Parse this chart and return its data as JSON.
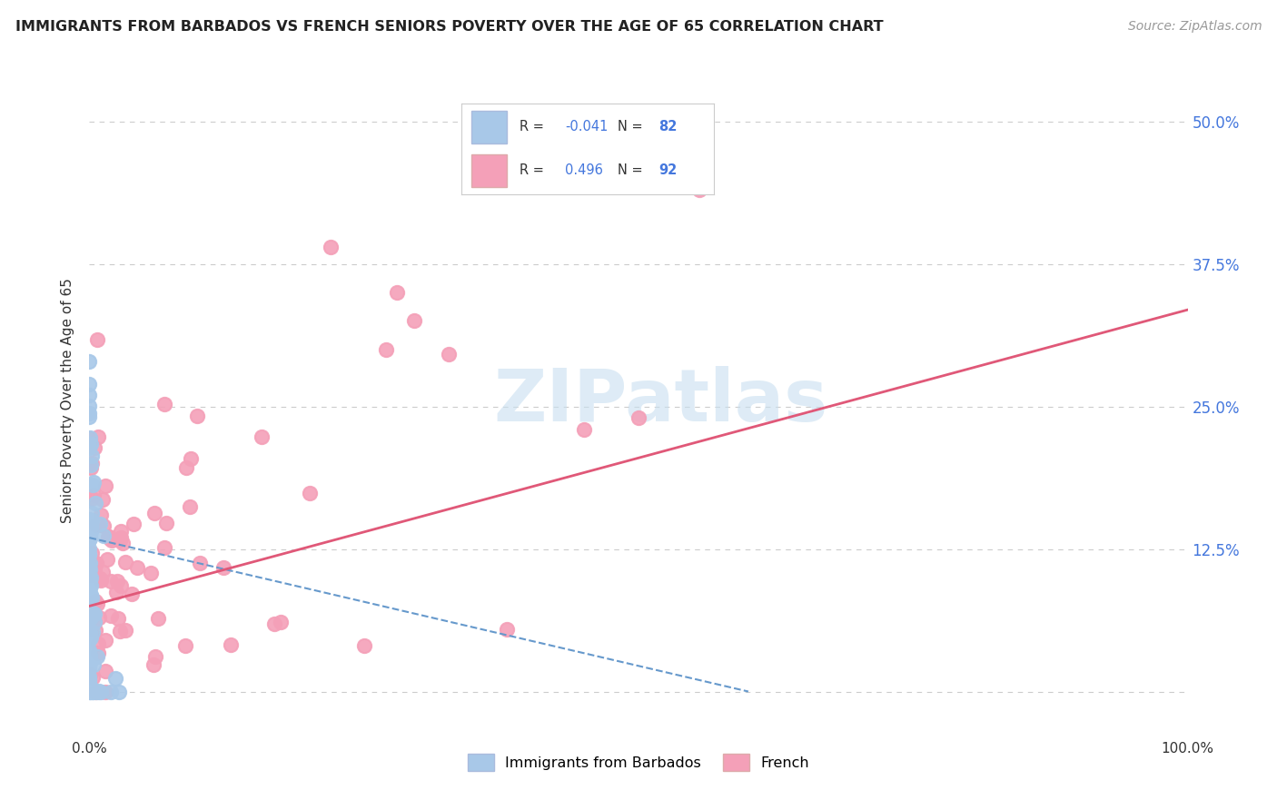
{
  "title": "IMMIGRANTS FROM BARBADOS VS FRENCH SENIORS POVERTY OVER THE AGE OF 65 CORRELATION CHART",
  "source": "Source: ZipAtlas.com",
  "ylabel": "Seniors Poverty Over the Age of 65",
  "xlim": [
    0,
    1.0
  ],
  "ylim": [
    -0.04,
    0.55
  ],
  "ytick_positions": [
    0.0,
    0.125,
    0.25,
    0.375,
    0.5
  ],
  "ytick_labels": [
    "",
    "12.5%",
    "25.0%",
    "37.5%",
    "50.0%"
  ],
  "xticklabels": [
    "0.0%",
    "",
    "",
    "",
    "",
    "",
    "",
    "",
    "100.0%"
  ],
  "legend": {
    "R_barbados": -0.041,
    "N_barbados": 82,
    "R_french": 0.496,
    "N_french": 92
  },
  "barbados_color": "#a8c8e8",
  "french_color": "#f4a0b8",
  "barbados_line_color": "#6699cc",
  "french_line_color": "#e05878",
  "background_color": "#ffffff",
  "grid_color": "#cccccc",
  "legend_color": "#4477dd",
  "watermark_color": "#c8dff0"
}
